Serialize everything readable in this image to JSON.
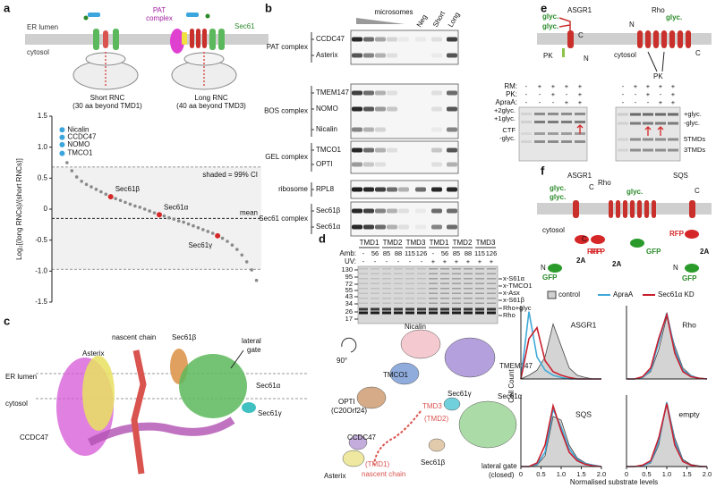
{
  "panel_labels": [
    "a",
    "b",
    "c",
    "d",
    "e",
    "f"
  ],
  "a": {
    "er_lumen": "ER lumen",
    "cytosol": "cytosol",
    "pat_complex": [
      "PAT",
      "complex"
    ],
    "sec61": "Sec61",
    "short_rnc": "Short RNC",
    "short_rnc_note": "(30 aa beyond TMD1)",
    "long_rnc": "Long RNC",
    "long_rnc_note": "(40 aa beyond TMD3)"
  },
  "b": {
    "microsomes": "microsomes",
    "lanes": [
      "Neg",
      "Short",
      "Long"
    ],
    "groups": [
      {
        "name": "PAT complex",
        "proteins": [
          "CCDC47",
          "Asterix"
        ]
      },
      {
        "name": "BOS complex",
        "proteins": [
          "TMEM147",
          "NOMO",
          "Nicalin"
        ]
      },
      {
        "name": "GEL complex",
        "proteins": [
          "TMCO1",
          "OPTI"
        ]
      },
      {
        "name": "ribosome",
        "proteins": [
          "RPL8"
        ]
      },
      {
        "name": "Sec61 complex",
        "proteins": [
          "Sec61β",
          "Sec61α"
        ]
      }
    ]
  },
  "c": {
    "labels": [
      "nascent chain",
      "Sec61β",
      "lateral",
      "gate",
      "Asterix",
      "ER lumen",
      "cytosol",
      "Sec61α",
      "Sec61γ",
      "CCDC47"
    ]
  },
  "d": {
    "tmds": [
      "TMD1",
      "TMD2",
      "TMD3",
      "TMD1",
      "TMD2",
      "TMD3"
    ],
    "amb_label": "Amb:",
    "amb": [
      "-",
      56,
      85,
      88,
      115,
      126,
      "-",
      56,
      85,
      88,
      115,
      126
    ],
    "uv_label": "UV:",
    "uv": [
      "-",
      "-",
      "-",
      "-",
      "-",
      "-",
      "+",
      "+",
      "+",
      "+",
      "+",
      "+"
    ],
    "mw": [
      130,
      95,
      72,
      55,
      43,
      34,
      26,
      17
    ],
    "band_labels": [
      "x-S61α",
      "x-TMCO1",
      "x-Asx",
      "x-S61β",
      "Rho+glyc",
      "Rho"
    ],
    "structure": {
      "rotation": "90°",
      "labels": [
        "Nicalin",
        "TMEM147",
        "TMCO1",
        "OPTI",
        "(C20Orf24)",
        "Sec61γ",
        "TMD3",
        "(TMD2)",
        "Sec61α",
        "CCDC47",
        "Sec61β",
        "(TMD1)",
        "nascent chain",
        "Asterix",
        "lateral gate",
        "(closed)"
      ]
    }
  },
  "e": {
    "proteins": [
      "ASGR1",
      "Rho"
    ],
    "diagram_labels": [
      "glyc.",
      "glyc.",
      "C",
      "PK",
      "N",
      "cytosol",
      "N",
      "glyc.",
      "C",
      "PK"
    ],
    "rows": [
      {
        "label": "RM:",
        "left": [
          "-",
          "+",
          "+",
          "+",
          "+"
        ],
        "right": [
          "-",
          "+",
          "+",
          "+",
          "+"
        ]
      },
      {
        "label": "PK:",
        "left": [
          "-",
          "-",
          "+",
          "-",
          "+"
        ],
        "right": [
          "-",
          "-",
          "+",
          "-",
          "+"
        ]
      },
      {
        "label": "ApraA:",
        "left": [
          "-",
          "-",
          "-",
          "+",
          "+"
        ],
        "right": [
          "-",
          "-",
          "-",
          "+",
          "+"
        ]
      }
    ],
    "left_bands": [
      "+2glyc.",
      "+1glyc.",
      "CTF",
      "-glyc."
    ],
    "right_bands": [
      "+glyc.",
      "-glyc.",
      "5TMDs",
      "3TMDs"
    ]
  },
  "f": {
    "asgr1": {
      "title": "ASGR1",
      "labels": [
        "glyc.",
        "glyc.",
        "C",
        "cytosol",
        "RFP",
        "N",
        "GFP",
        "2A"
      ]
    },
    "rho": {
      "title": "Rho",
      "labels": [
        "glyc.",
        "RFP",
        "C",
        "GFP",
        "2A"
      ]
    },
    "sqs": {
      "title": "SQS",
      "labels": [
        "C",
        "RFP",
        "N",
        "GFP",
        "2A"
      ]
    },
    "y_label": "Cell Count",
    "x_label": "Normalised substrate levels"
  },
  "chart_data": [
    {
      "type": "scatter",
      "y_label": "Log₂[(long RNCs)/(short RNCs)]",
      "xlim": [
        0,
        42
      ],
      "ylim": [
        -1.5,
        1.5
      ],
      "yticks": [
        -1.5,
        {
          "value": -1,
          "label": "-1.0"
        },
        -0.5,
        0,
        0.5,
        {
          "value": 1,
          "label": "1.0"
        },
        1.5
      ],
      "color": "#8a8a8a",
      "x": [
        2,
        3,
        4,
        5,
        6,
        7,
        8,
        9,
        10,
        11,
        12,
        13,
        14,
        15,
        16,
        17,
        18,
        19,
        20,
        21,
        22,
        23,
        24,
        25,
        26,
        27,
        28,
        29,
        30,
        31,
        32,
        33,
        34,
        35,
        36,
        37,
        38,
        39,
        40,
        41
      ],
      "values": [
        0.75,
        0.62,
        0.52,
        0.45,
        0.4,
        0.36,
        0.32,
        0.28,
        0.24,
        0.2,
        0.17,
        0.14,
        0.11,
        0.08,
        0.05,
        0.03,
        0,
        -0.03,
        -0.06,
        -0.09,
        -0.11,
        -0.14,
        -0.16,
        -0.19,
        -0.21,
        -0.24,
        -0.27,
        -0.3,
        -0.33,
        -0.36,
        -0.39,
        -0.43,
        -0.47,
        -0.52,
        -0.58,
        -0.65,
        -0.74,
        -0.85,
        -0.98,
        -1.15
      ],
      "highlights": [
        {
          "label": "Nicalin",
          "x": 1,
          "y": 1.28,
          "color": "#3aa6dd"
        },
        {
          "label": "CCDC47",
          "x": 1,
          "y": 1.16,
          "color": "#3aa6dd"
        },
        {
          "label": "NOMO",
          "x": 1,
          "y": 1.04,
          "color": "#3aa6dd"
        },
        {
          "label": "TMCO1",
          "x": 1,
          "y": 0.9,
          "color": "#3aa6dd"
        },
        {
          "label": "Sec61β",
          "x": 11,
          "y": 0.2,
          "color": "#d62728"
        },
        {
          "label": "Sec61α",
          "x": 21,
          "y": -0.09,
          "color": "#d62728"
        },
        {
          "label": "Sec61γ",
          "x": 33,
          "y": -0.43,
          "color": "#d62728"
        }
      ],
      "ci": [
        -0.97,
        0.68
      ],
      "ci_label": "shaded = 99% CI",
      "mean": -0.15,
      "mean_label": "mean"
    },
    {
      "type": "line",
      "title": "ASGR1",
      "x": [
        0,
        0.2,
        0.4,
        0.6,
        0.8,
        1,
        1.2,
        1.4,
        1.6,
        1.8,
        2
      ],
      "xlim": [
        0,
        2
      ],
      "ylim": [
        0,
        1
      ],
      "series": [
        {
          "name": "control",
          "color": "#444",
          "fill": "#cfcfcf",
          "values": [
            0,
            0.05,
            0.12,
            0.3,
            0.75,
            0.45,
            0.15,
            0.05,
            0.02,
            0,
            0
          ]
        },
        {
          "name": "ApraA",
          "color": "#3fa9d8",
          "values": [
            0,
            0.92,
            0.3,
            0.12,
            0.05,
            0.02,
            0,
            0,
            0,
            0,
            0
          ]
        },
        {
          "name": "Sec61α KD",
          "color": "#c8202e",
          "values": [
            0,
            0.55,
            0.7,
            0.25,
            0.1,
            0.05,
            0.02,
            0,
            0,
            0,
            0
          ]
        }
      ]
    },
    {
      "type": "line",
      "title": "Rho",
      "x": [
        0,
        0.2,
        0.4,
        0.6,
        0.8,
        1,
        1.2,
        1.4,
        1.6,
        1.8,
        2
      ],
      "xlim": [
        0,
        2
      ],
      "ylim": [
        0,
        1
      ],
      "series": [
        {
          "color": "#444",
          "fill": "#cfcfcf",
          "values": [
            0,
            0,
            0.02,
            0.1,
            0.4,
            0.85,
            0.45,
            0.15,
            0.05,
            0.01,
            0
          ]
        },
        {
          "color": "#3fa9d8",
          "values": [
            0,
            0,
            0.02,
            0.12,
            0.5,
            0.9,
            0.4,
            0.12,
            0.04,
            0.01,
            0
          ]
        },
        {
          "color": "#c8202e",
          "values": [
            0,
            0,
            0.03,
            0.15,
            0.55,
            0.88,
            0.35,
            0.1,
            0.03,
            0.01,
            0
          ]
        }
      ]
    },
    {
      "type": "line",
      "title": "SQS",
      "x": [
        0,
        0.2,
        0.4,
        0.6,
        0.8,
        1,
        1.2,
        1.4,
        1.6,
        1.8,
        2
      ],
      "xlim": [
        0,
        2
      ],
      "ylim": [
        0,
        1
      ],
      "xticks": [
        0,
        0.5,
        {
          "value": 1,
          "label": "1.0"
        },
        1.5,
        {
          "value": 2,
          "label": "2.0"
        }
      ],
      "series": [
        {
          "color": "#444",
          "fill": "#cfcfcf",
          "values": [
            0,
            0,
            0.02,
            0.15,
            0.7,
            0.65,
            0.3,
            0.12,
            0.05,
            0.02,
            0
          ]
        },
        {
          "color": "#3fa9d8",
          "values": [
            0,
            0,
            0.03,
            0.2,
            0.8,
            0.55,
            0.25,
            0.1,
            0.04,
            0.02,
            0
          ]
        },
        {
          "color": "#c8202e",
          "values": [
            0,
            0,
            0.05,
            0.3,
            0.85,
            0.5,
            0.2,
            0.08,
            0.03,
            0.01,
            0
          ]
        }
      ]
    },
    {
      "type": "line",
      "title": "empty",
      "x": [
        0,
        0.2,
        0.4,
        0.6,
        0.8,
        1,
        1.2,
        1.4,
        1.6,
        1.8,
        2
      ],
      "xlim": [
        0,
        2
      ],
      "ylim": [
        0,
        1
      ],
      "xticks": [
        0,
        0.5,
        {
          "value": 1,
          "label": "1.0"
        },
        1.5,
        {
          "value": 2,
          "label": "2.0"
        }
      ],
      "series": [
        {
          "color": "#444",
          "fill": "#cfcfcf",
          "values": [
            0,
            0,
            0.01,
            0.05,
            0.3,
            0.9,
            0.4,
            0.1,
            0.03,
            0.01,
            0
          ]
        },
        {
          "color": "#3fa9d8",
          "values": [
            0,
            0,
            0.01,
            0.06,
            0.35,
            0.9,
            0.35,
            0.08,
            0.02,
            0,
            0
          ]
        },
        {
          "color": "#c8202e",
          "values": [
            0,
            0,
            0.02,
            0.08,
            0.4,
            0.88,
            0.3,
            0.07,
            0.02,
            0,
            0
          ]
        }
      ]
    }
  ]
}
